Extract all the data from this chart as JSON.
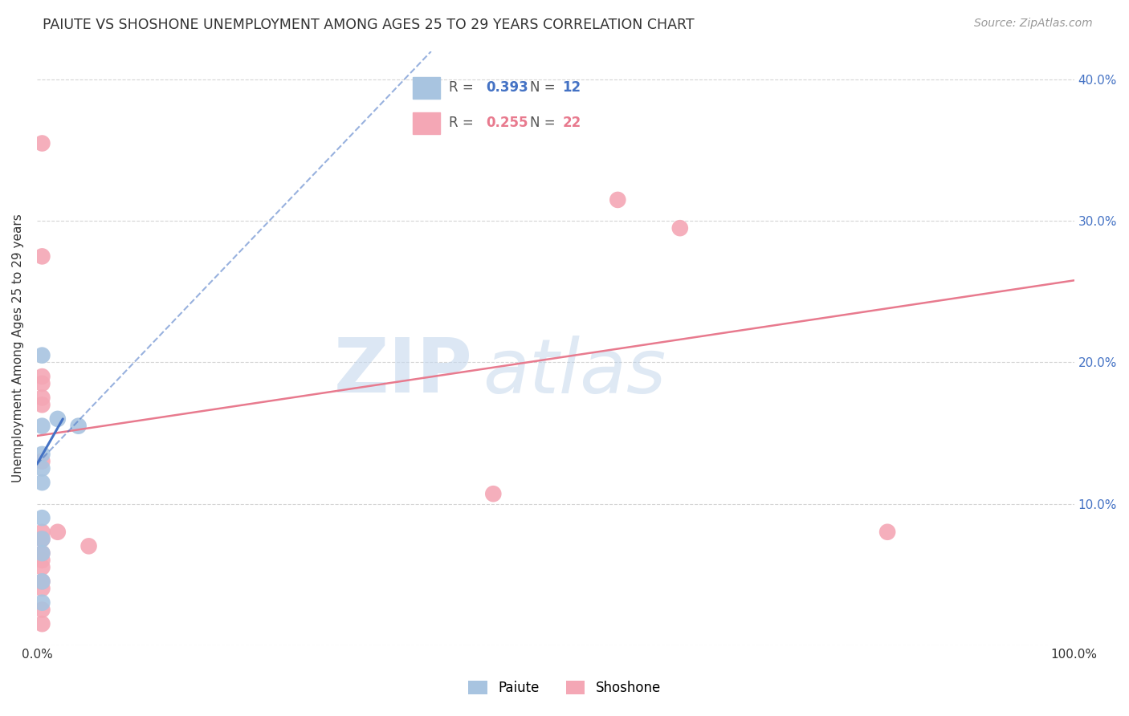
{
  "title": "PAIUTE VS SHOSHONE UNEMPLOYMENT AMONG AGES 25 TO 29 YEARS CORRELATION CHART",
  "source": "Source: ZipAtlas.com",
  "ylabel": "Unemployment Among Ages 25 to 29 years",
  "xlim": [
    0.0,
    1.0
  ],
  "ylim": [
    0.0,
    0.42
  ],
  "xticks": [
    0.0,
    0.2,
    0.4,
    0.6,
    0.8,
    1.0
  ],
  "xtick_labels": [
    "0.0%",
    "",
    "",
    "",
    "",
    "100.0%"
  ],
  "yticks": [
    0.0,
    0.1,
    0.2,
    0.3,
    0.4
  ],
  "ytick_labels": [
    "",
    "10.0%",
    "20.0%",
    "30.0%",
    "40.0%"
  ],
  "paiute_R": 0.393,
  "paiute_N": 12,
  "shoshone_R": 0.255,
  "shoshone_N": 22,
  "paiute_color": "#a8c4e0",
  "shoshone_color": "#f4a7b5",
  "paiute_line_color": "#4472c4",
  "shoshone_line_color": "#e87a8e",
  "paiute_scatter": [
    [
      0.005,
      0.205
    ],
    [
      0.005,
      0.155
    ],
    [
      0.005,
      0.135
    ],
    [
      0.005,
      0.125
    ],
    [
      0.005,
      0.115
    ],
    [
      0.005,
      0.09
    ],
    [
      0.005,
      0.075
    ],
    [
      0.005,
      0.065
    ],
    [
      0.005,
      0.045
    ],
    [
      0.005,
      0.03
    ],
    [
      0.02,
      0.16
    ],
    [
      0.04,
      0.155
    ]
  ],
  "shoshone_scatter": [
    [
      0.005,
      0.355
    ],
    [
      0.005,
      0.275
    ],
    [
      0.005,
      0.19
    ],
    [
      0.005,
      0.185
    ],
    [
      0.005,
      0.175
    ],
    [
      0.005,
      0.17
    ],
    [
      0.005,
      0.13
    ],
    [
      0.005,
      0.08
    ],
    [
      0.005,
      0.075
    ],
    [
      0.005,
      0.065
    ],
    [
      0.005,
      0.06
    ],
    [
      0.005,
      0.055
    ],
    [
      0.005,
      0.04
    ],
    [
      0.005,
      0.025
    ],
    [
      0.005,
      0.015
    ],
    [
      0.02,
      0.08
    ],
    [
      0.05,
      0.07
    ],
    [
      0.44,
      0.107
    ],
    [
      0.56,
      0.315
    ],
    [
      0.62,
      0.295
    ],
    [
      0.82,
      0.08
    ],
    [
      0.005,
      0.045
    ]
  ],
  "paiute_trendline_solid": [
    [
      0.0,
      0.128
    ],
    [
      0.025,
      0.16
    ]
  ],
  "paiute_trendline_dashed": [
    [
      0.0,
      0.128
    ],
    [
      0.38,
      0.42
    ]
  ],
  "shoshone_trendline": [
    [
      0.0,
      0.148
    ],
    [
      1.0,
      0.258
    ]
  ],
  "watermark_zip": "ZIP",
  "watermark_atlas": "atlas",
  "background_color": "#ffffff",
  "grid_color": "#d5d5d5",
  "legend_paiute_label": "Paiute",
  "legend_shoshone_label": "Shoshone"
}
